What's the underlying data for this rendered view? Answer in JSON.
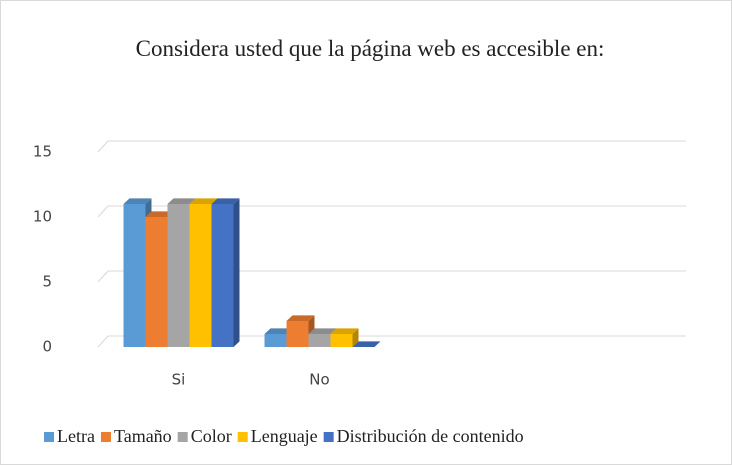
{
  "chart_data": {
    "type": "bar3d",
    "title": "Considera usted que la página web es accesible en:",
    "categories": [
      "Si",
      "No",
      null,
      null
    ],
    "series": [
      {
        "name": "Letra",
        "color": "#5b9bd5",
        "values": [
          11,
          1,
          null,
          null
        ]
      },
      {
        "name": "Tamaño",
        "color": "#ed7d31",
        "values": [
          10,
          2,
          null,
          null
        ]
      },
      {
        "name": "Color",
        "color": "#a5a5a5",
        "values": [
          11,
          1,
          null,
          null
        ]
      },
      {
        "name": "Lenguaje",
        "color": "#ffc000",
        "values": [
          11,
          1,
          null,
          null
        ]
      },
      {
        "name": "Distribución de contenido",
        "color": "#4472c4",
        "values": [
          11,
          0,
          null,
          null
        ]
      }
    ],
    "ylim": [
      0,
      15
    ],
    "yticks": [
      0,
      5,
      10,
      15
    ],
    "grid": true,
    "legend": "bottom"
  }
}
